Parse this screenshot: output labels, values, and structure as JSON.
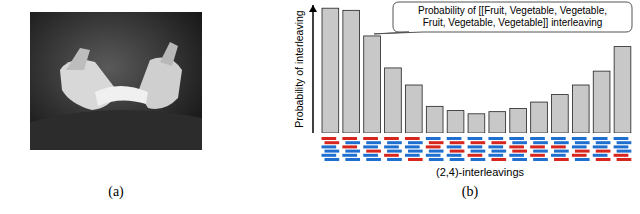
{
  "chart_data": {
    "type": "bar",
    "y_label": "Probability of interleaving",
    "x_label": "(2,4)-interleavings",
    "annotation": "Probability of [[Fruit, Vegetable, Vegetable, Fruit, Vegetable, Vegetable]] interleaving",
    "categories": [
      null,
      null,
      null,
      null,
      null,
      null,
      null,
      null,
      null,
      null,
      null,
      null,
      null,
      null,
      null
    ],
    "values": [
      117,
      115,
      91,
      61,
      45,
      25,
      21,
      18,
      20,
      23,
      29,
      36,
      45,
      58,
      81
    ],
    "color": "#c8c8c8",
    "ylim": [
      0,
      120
    ],
    "yticks": [],
    "tick_labels": false,
    "grid": false
  },
  "figure": {
    "panel_a_label": "(a)",
    "panel_b_label": "(b)"
  }
}
